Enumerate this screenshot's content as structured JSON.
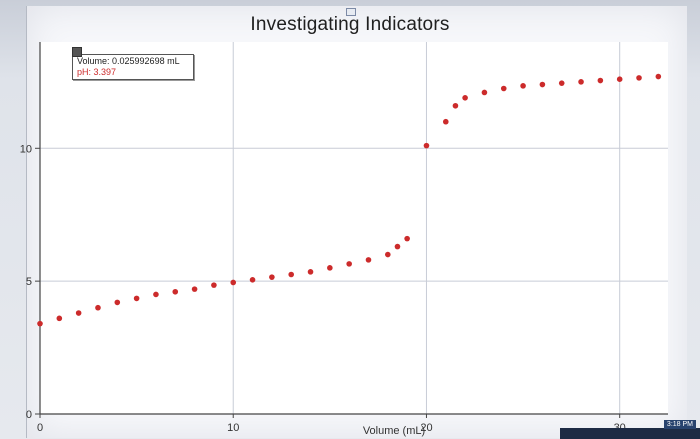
{
  "window": {
    "title": "Investigating Indicators",
    "clock": "3:18 PM"
  },
  "readout": {
    "volume": "Volume: 0.025992698 mL",
    "ph": "pH: 3.397"
  },
  "colors": {
    "point": "#cc2b2b",
    "grid": "#c8ccd6",
    "axis": "#444444"
  },
  "chart_data": {
    "type": "scatter",
    "title": "Investigating Indicators",
    "xlabel": "Volume (mL)",
    "ylabel": "",
    "xlim": [
      0,
      32.5
    ],
    "ylim": [
      0,
      14
    ],
    "x_ticks": [
      0,
      10,
      20,
      30
    ],
    "y_ticks": [
      0,
      5,
      10
    ],
    "grid": true,
    "series": [
      {
        "x": [
          0,
          1,
          2,
          3,
          4,
          5,
          6,
          7,
          8,
          9,
          10,
          11,
          12,
          13,
          14,
          15,
          16,
          17,
          18,
          18.5,
          19,
          20,
          21,
          21.5,
          22,
          23,
          24,
          25,
          26,
          27,
          28,
          29,
          30,
          31,
          32
        ],
        "y": [
          3.4,
          3.6,
          3.8,
          4.0,
          4.2,
          4.35,
          4.5,
          4.6,
          4.7,
          4.85,
          4.95,
          5.05,
          5.15,
          5.25,
          5.35,
          5.5,
          5.65,
          5.8,
          6.0,
          6.3,
          6.6,
          10.1,
          11.0,
          11.6,
          11.9,
          12.1,
          12.25,
          12.35,
          12.4,
          12.45,
          12.5,
          12.55,
          12.6,
          12.65,
          12.7
        ]
      }
    ]
  }
}
